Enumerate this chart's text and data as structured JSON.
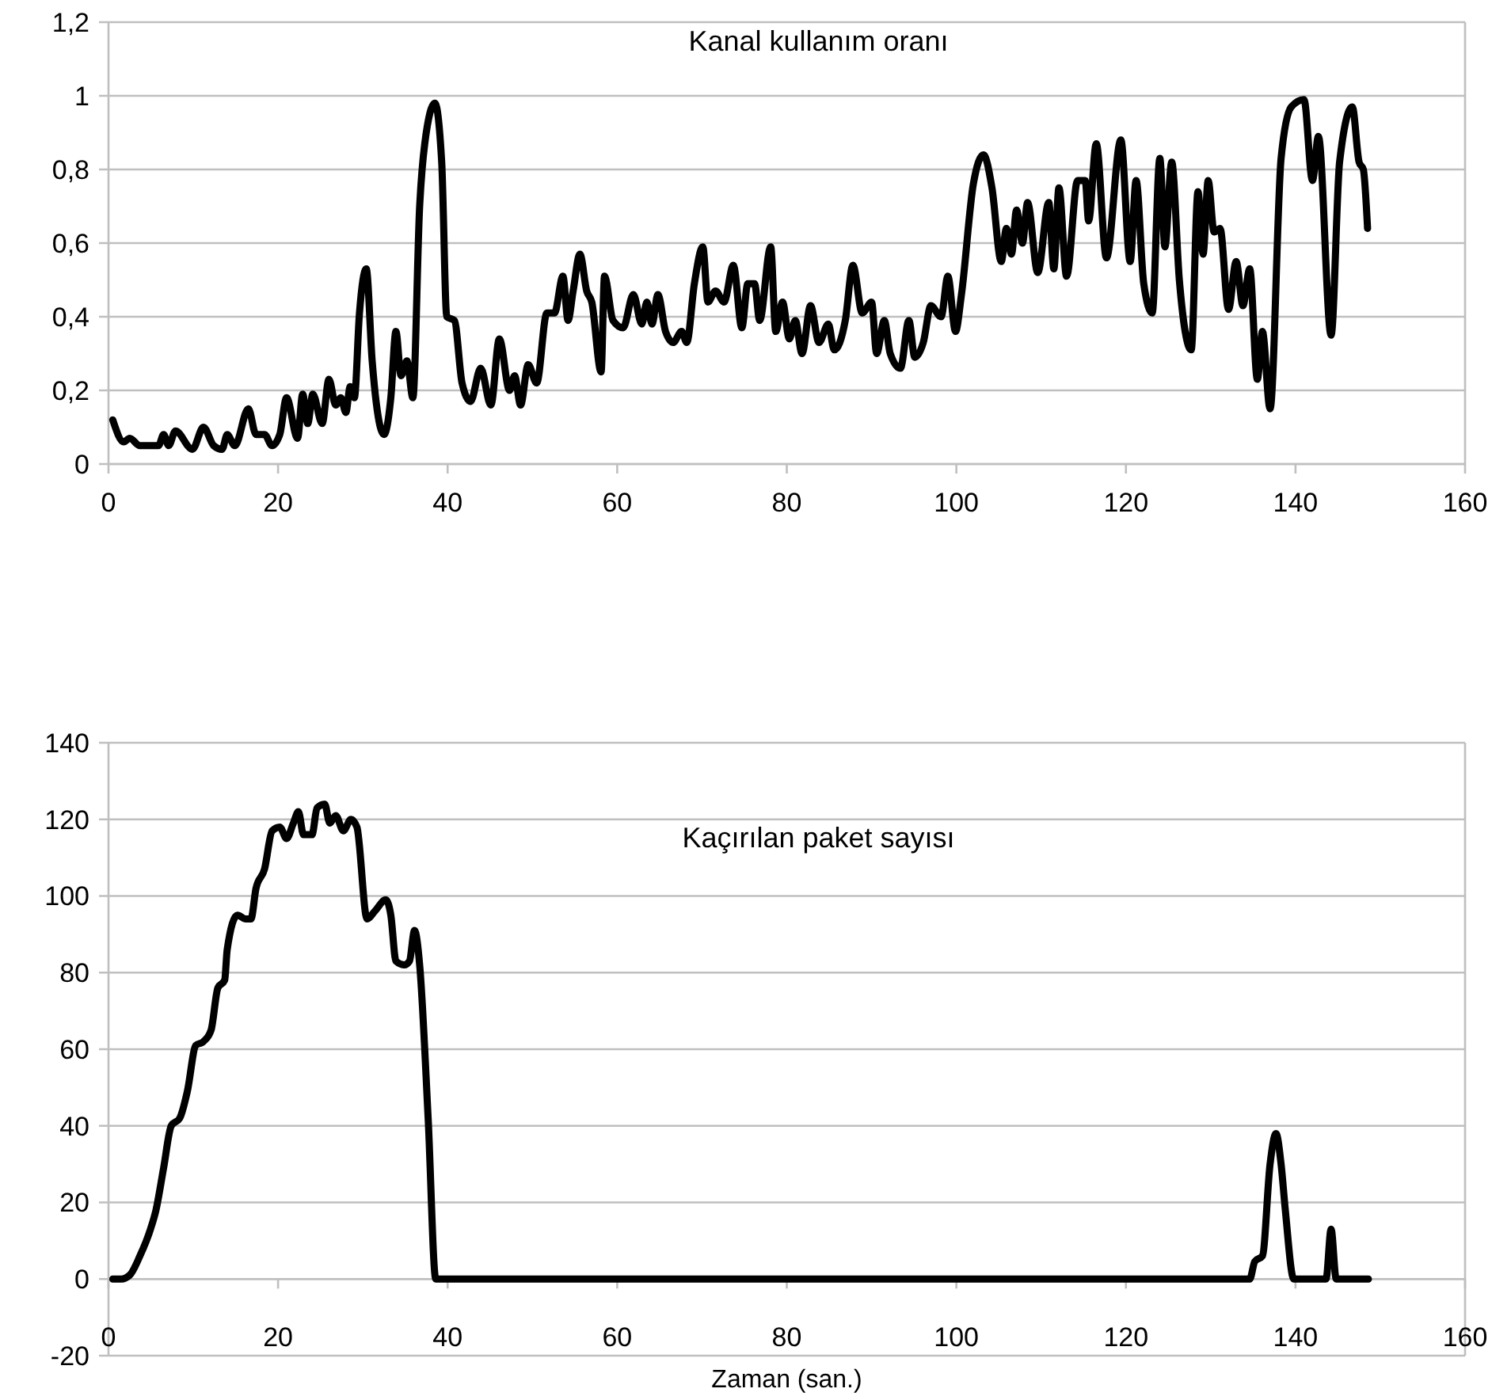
{
  "chart_data": [
    {
      "type": "line",
      "title": "Kanal kullanım oranı",
      "xlim": [
        0,
        160
      ],
      "xticks": [
        0,
        20,
        40,
        60,
        80,
        100,
        120,
        140,
        160
      ],
      "ylim": [
        0,
        1.2
      ],
      "yticks": [
        0,
        {
          "value": 0.2,
          "label": "0,2"
        },
        {
          "value": 0.4,
          "label": "0,4"
        },
        {
          "value": 0.6,
          "label": "0,6"
        },
        {
          "value": 0.8,
          "label": "0,8"
        },
        1,
        {
          "value": 1.2,
          "label": "1,2"
        }
      ],
      "grid": "y",
      "line_style": "solid",
      "marker": "none",
      "series": [
        {
          "color": "#000000",
          "x": [
            0.5,
            1.8,
            2.5,
            3.7,
            4.95,
            5.9,
            6.5,
            7.1,
            7.9,
            9.9,
            11.2,
            12.4,
            13.4,
            14,
            14.9,
            16.5,
            17.4,
            18.4,
            19.3,
            20.2,
            21,
            22.3,
            22.9,
            23.5,
            24.1,
            25.2,
            26,
            26.8,
            27.4,
            28,
            28.5,
            29,
            29.6,
            30.4,
            31.1,
            32.5,
            33.3,
            33.9,
            34.5,
            35.2,
            35.9,
            36.7,
            37.3,
            38.5,
            39.3,
            39.9,
            40.8,
            41.7,
            42.7,
            43.9,
            45.1,
            46.1,
            47.3,
            47.9,
            48.6,
            49.5,
            50.5,
            51.7,
            52.6,
            53.6,
            54.2,
            54.8,
            55.6,
            56.4,
            57,
            58.1,
            58.5,
            59.5,
            60.7,
            61.9,
            62.9,
            63.5,
            64.1,
            64.8,
            65.7,
            66.6,
            67.6,
            68.2,
            69.1,
            70.1,
            70.7,
            71.6,
            72.6,
            73.7,
            74.7,
            75.4,
            76.2,
            76.8,
            78.1,
            78.7,
            79.5,
            80.3,
            81,
            81.8,
            82.8,
            83.8,
            84.9,
            85.6,
            86.9,
            87.8,
            88.9,
            90,
            90.6,
            91.5,
            92.2,
            93.4,
            94.4,
            95.1,
            96.1,
            97,
            98.2,
            99,
            99.9,
            100.6,
            102,
            103.2,
            104.2,
            105.3,
            105.9,
            106.5,
            107.1,
            107.8,
            108.4,
            109.6,
            110.9,
            111.5,
            112.1,
            113,
            114.3,
            115.2,
            115.6,
            116.5,
            117.7,
            119.4,
            120.5,
            121.2,
            122.1,
            123.1,
            124,
            124.6,
            125.4,
            126.3,
            127.7,
            128.5,
            129.1,
            129.7,
            130.4,
            131.1,
            132.1,
            133,
            133.8,
            134.6,
            135.5,
            136.1,
            137,
            138.3,
            139.5,
            141,
            142,
            142.7,
            144.2,
            145.2,
            146.7,
            147.5,
            148,
            148.5
          ],
          "values": [
            0.12,
            0.06,
            0.07,
            0.05,
            0.05,
            0.05,
            0.08,
            0.05,
            0.09,
            0.04,
            0.1,
            0.05,
            0.04,
            0.08,
            0.05,
            0.15,
            0.08,
            0.08,
            0.05,
            0.08,
            0.18,
            0.07,
            0.19,
            0.11,
            0.19,
            0.11,
            0.23,
            0.16,
            0.18,
            0.14,
            0.21,
            0.18,
            0.41,
            0.53,
            0.28,
            0.08,
            0.18,
            0.36,
            0.24,
            0.28,
            0.18,
            0.7,
            0.87,
            0.98,
            0.82,
            0.4,
            0.39,
            0.22,
            0.17,
            0.26,
            0.16,
            0.34,
            0.2,
            0.24,
            0.16,
            0.27,
            0.22,
            0.41,
            0.41,
            0.51,
            0.39,
            0.47,
            0.57,
            0.47,
            0.44,
            0.25,
            0.51,
            0.39,
            0.37,
            0.46,
            0.38,
            0.44,
            0.38,
            0.46,
            0.36,
            0.33,
            0.36,
            0.33,
            0.49,
            0.59,
            0.44,
            0.47,
            0.44,
            0.54,
            0.37,
            0.49,
            0.49,
            0.39,
            0.59,
            0.36,
            0.44,
            0.34,
            0.39,
            0.3,
            0.43,
            0.33,
            0.38,
            0.31,
            0.39,
            0.54,
            0.41,
            0.44,
            0.3,
            0.39,
            0.3,
            0.26,
            0.39,
            0.29,
            0.33,
            0.43,
            0.4,
            0.51,
            0.36,
            0.46,
            0.76,
            0.84,
            0.75,
            0.55,
            0.64,
            0.57,
            0.69,
            0.6,
            0.71,
            0.52,
            0.71,
            0.53,
            0.75,
            0.51,
            0.77,
            0.77,
            0.66,
            0.87,
            0.56,
            0.88,
            0.55,
            0.77,
            0.49,
            0.41,
            0.83,
            0.59,
            0.82,
            0.5,
            0.31,
            0.74,
            0.57,
            0.77,
            0.63,
            0.64,
            0.42,
            0.55,
            0.43,
            0.53,
            0.23,
            0.36,
            0.15,
            0.83,
            0.97,
            0.99,
            0.77,
            0.89,
            0.35,
            0.82,
            0.97,
            0.82,
            0.8,
            0.64
          ]
        }
      ]
    },
    {
      "type": "line",
      "title": "Kaçırılan paket sayısı",
      "xlabel": "Zaman (san.)",
      "xlim": [
        0,
        160
      ],
      "xticks": [
        0,
        20,
        40,
        60,
        80,
        100,
        120,
        140,
        160
      ],
      "ylim": [
        -20,
        140
      ],
      "yticks": [
        -20,
        0,
        20,
        40,
        60,
        80,
        100,
        120,
        140
      ],
      "grid": "y",
      "line_style": "solid",
      "marker": "none",
      "series": [
        {
          "color": "#000000",
          "x": [
            0.5,
            1.5,
            2.5,
            3.7,
            4.95,
            5.6,
            6.5,
            7.4,
            8.4,
            9.3,
            10.3,
            11.2,
            12.1,
            12.9,
            13.7,
            14,
            15.2,
            16.2,
            16.8,
            17.4,
            18.4,
            19.3,
            20.2,
            21,
            21.8,
            22.4,
            23,
            24,
            24.6,
            25.5,
            26.1,
            26.8,
            27.7,
            28.6,
            29.3,
            30.5,
            31.4,
            32.7,
            33.3,
            33.9,
            34.9,
            35.5,
            36.1,
            36.7,
            37.7,
            38.6,
            60,
            80,
            100,
            120,
            134.6,
            135.2,
            136.1,
            137,
            137.7,
            138.3,
            138.8,
            139.8,
            143.6,
            144.2,
            144.8,
            148.6
          ],
          "values": [
            0,
            0,
            1,
            6,
            13,
            18,
            29,
            40,
            42,
            49,
            61,
            62,
            65,
            76,
            78,
            86,
            95,
            94,
            94,
            102,
            107,
            117,
            118,
            115,
            119,
            122,
            116,
            116,
            123,
            124,
            119,
            121,
            117,
            120,
            118,
            94,
            96,
            99,
            95,
            83,
            82,
            83,
            91,
            82,
            42,
            0,
            0,
            0,
            0,
            0,
            0,
            4.6,
            6,
            30,
            38,
            30,
            18,
            0,
            0,
            13,
            0,
            0
          ]
        }
      ]
    }
  ]
}
